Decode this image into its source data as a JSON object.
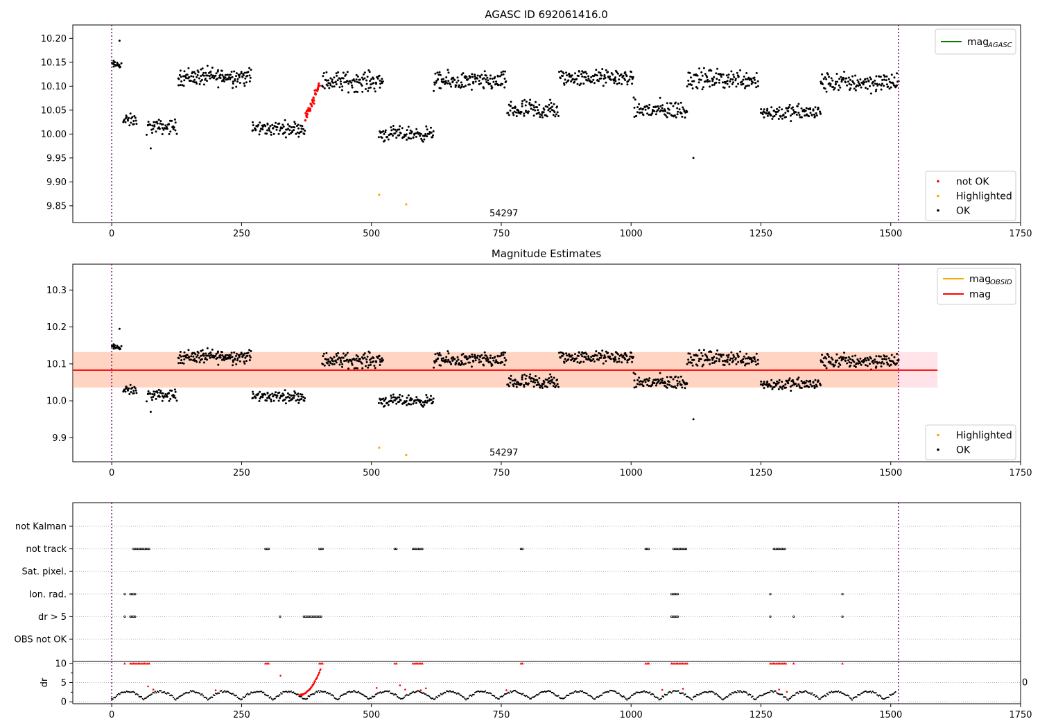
{
  "chart_data": [
    {
      "type": "scatter",
      "title": "AGASC ID 692061416.0",
      "annotation": "54297",
      "xlim": [
        -75,
        1750
      ],
      "ylim": [
        9.815,
        10.228
      ],
      "xticks": [
        0,
        250,
        500,
        750,
        1000,
        1250,
        1500,
        1750
      ],
      "xtick_labels": [
        "0",
        "250",
        "500",
        "750",
        "1000",
        "1250",
        "1500",
        "1750"
      ],
      "yticks": [
        9.85,
        9.9,
        9.95,
        10.0,
        10.05,
        10.1,
        10.15,
        10.2
      ],
      "ytick_labels": [
        "9.85",
        "9.90",
        "9.95",
        "10.00",
        "10.05",
        "10.10",
        "10.15",
        "10.20"
      ],
      "vlines": [
        0,
        1515
      ],
      "legend_top": {
        "position": "top-right",
        "entries": [
          {
            "label": "mag",
            "sub": "AGASC",
            "color": "#008000",
            "kind": "line"
          }
        ]
      },
      "legend_bottom": {
        "position": "bottom-right",
        "entries": [
          {
            "label": "not OK",
            "color": "#ff0000",
            "kind": "marker"
          },
          {
            "label": "Highlighted",
            "color": "#ffa500",
            "kind": "marker"
          },
          {
            "label": "OK",
            "color": "#000000",
            "kind": "marker"
          }
        ]
      },
      "segments": [
        {
          "x0": 0,
          "x1": 18,
          "y": 10.145,
          "amp": 0.012,
          "n": 18
        },
        {
          "x0": 22,
          "x1": 48,
          "y": 10.028,
          "amp": 0.02,
          "n": 22
        },
        {
          "x0": 68,
          "x1": 125,
          "y": 10.015,
          "amp": 0.022,
          "n": 50
        },
        {
          "x0": 128,
          "x1": 268,
          "y": 10.12,
          "amp": 0.028,
          "n": 140
        },
        {
          "x0": 270,
          "x1": 372,
          "y": 10.012,
          "amp": 0.022,
          "n": 90
        },
        {
          "x0": 405,
          "x1": 522,
          "y": 10.11,
          "amp": 0.03,
          "n": 110
        },
        {
          "x0": 515,
          "x1": 620,
          "y": 10.0,
          "amp": 0.022,
          "n": 90
        },
        {
          "x0": 620,
          "x1": 760,
          "y": 10.11,
          "amp": 0.028,
          "n": 130
        },
        {
          "x0": 762,
          "x1": 860,
          "y": 10.05,
          "amp": 0.032,
          "n": 90
        },
        {
          "x0": 862,
          "x1": 1005,
          "y": 10.118,
          "amp": 0.025,
          "n": 130
        },
        {
          "x0": 1005,
          "x1": 1108,
          "y": 10.05,
          "amp": 0.03,
          "n": 90
        },
        {
          "x0": 1108,
          "x1": 1245,
          "y": 10.115,
          "amp": 0.03,
          "n": 120
        },
        {
          "x0": 1250,
          "x1": 1365,
          "y": 10.045,
          "amp": 0.025,
          "n": 100
        },
        {
          "x0": 1365,
          "x1": 1515,
          "y": 10.108,
          "amp": 0.03,
          "n": 130
        }
      ],
      "not_ok_trend": {
        "x0": 372,
        "x1": 400,
        "y0": 10.03,
        "y1": 10.105,
        "n": 40
      },
      "highlighted": [
        {
          "x": 515,
          "y": 9.873
        },
        {
          "x": 567,
          "y": 9.853
        }
      ],
      "outliers": [
        {
          "x": 1120,
          "y": 9.95
        },
        {
          "x": 75,
          "y": 9.97
        },
        {
          "x": 15,
          "y": 10.195
        }
      ]
    },
    {
      "type": "scatter",
      "title": "Magnitude Estimates",
      "annotation": "54297",
      "xlim": [
        -75,
        1750
      ],
      "ylim": [
        9.835,
        10.37
      ],
      "xticks": [
        0,
        250,
        500,
        750,
        1000,
        1250,
        1500,
        1750
      ],
      "xtick_labels": [
        "0",
        "250",
        "500",
        "750",
        "1000",
        "1250",
        "1500",
        "1750"
      ],
      "yticks": [
        9.9,
        10.0,
        10.1,
        10.2,
        10.3
      ],
      "ytick_labels": [
        "9.9",
        "10.0",
        "10.1",
        "10.2",
        "10.3"
      ],
      "vlines": [
        0,
        1515
      ],
      "mag": 10.083,
      "mag_band": [
        10.036,
        10.132
      ],
      "band_xlim": [
        -75,
        1590
      ],
      "legend_top": {
        "position": "top-right",
        "entries": [
          {
            "label": "mag",
            "sub": "OBSID",
            "color": "#ffa500",
            "kind": "line"
          },
          {
            "label": "mag",
            "sub": "",
            "color": "#ff0000",
            "kind": "line"
          }
        ]
      },
      "legend_bottom": {
        "position": "bottom-right",
        "entries": [
          {
            "label": "Highlighted",
            "color": "#ffa500",
            "kind": "marker"
          },
          {
            "label": "OK",
            "color": "#000000",
            "kind": "marker"
          }
        ]
      }
    },
    {
      "type": "scatter",
      "title": "",
      "xlim": [
        -75,
        1750
      ],
      "flag_categories": [
        "not Kalman",
        "not track",
        "Sat. pixel.",
        "Ion. rad.",
        "dr > 5",
        "OBS not OK"
      ],
      "flags": {
        "not track": [
          [
            42,
            72
          ],
          [
            296,
            302
          ],
          [
            400,
            406
          ],
          [
            545,
            550
          ],
          [
            580,
            598
          ],
          [
            788,
            793
          ],
          [
            1028,
            1034
          ],
          [
            1082,
            1108
          ],
          [
            1275,
            1298
          ]
        ],
        "Ion. rad.": [
          [
            25,
            27
          ],
          [
            36,
            46
          ],
          [
            1078,
            1090
          ],
          [
            1268,
            1270
          ],
          [
            1407,
            1409
          ]
        ],
        "dr > 5": [
          [
            25,
            27
          ],
          [
            36,
            46
          ],
          [
            324,
            326
          ],
          [
            370,
            403
          ],
          [
            1078,
            1090
          ],
          [
            1268,
            1270
          ],
          [
            1313,
            1315
          ],
          [
            1407,
            1409
          ]
        ]
      },
      "dr_ylim": [
        -0.5,
        10.5
      ],
      "dr_yticks": [
        0,
        5,
        10
      ],
      "dr_ytick_labels": [
        "0",
        "5",
        "10"
      ],
      "dr_ylabel": "dr",
      "dr_stray_label": "0",
      "dr_red_at_10": [
        [
          25,
          27
        ],
        [
          36,
          72
        ],
        [
          296,
          302
        ],
        [
          400,
          406
        ],
        [
          545,
          550
        ],
        [
          580,
          598
        ],
        [
          788,
          793
        ],
        [
          1028,
          1034
        ],
        [
          1078,
          1108
        ],
        [
          1268,
          1298
        ],
        [
          1313,
          1315
        ],
        [
          1407,
          1409
        ]
      ],
      "xticks": [
        0,
        250,
        500,
        750,
        1000,
        1250,
        1500,
        1750
      ],
      "xtick_labels": [
        "0",
        "250",
        "500",
        "750",
        "1000",
        "1250",
        "1500",
        "1750"
      ],
      "vlines": [
        0,
        1515
      ]
    }
  ]
}
